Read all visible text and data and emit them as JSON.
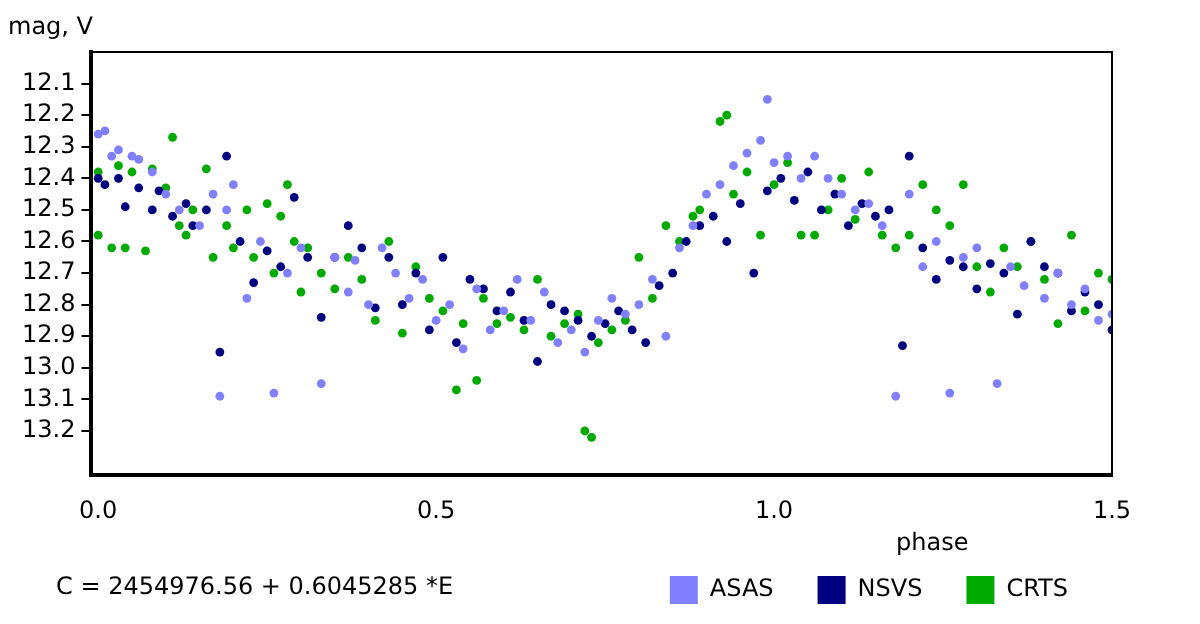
{
  "chart_data": {
    "type": "scatter",
    "ylabel": "mag, V",
    "xlabel": "phase",
    "annotations": [
      "C = 2454976.56 + 0.6045285 *E"
    ],
    "xlim": [
      -0.01,
      1.5
    ],
    "xticks": [
      {
        "value": 0,
        "label": "0.0"
      },
      0.5,
      {
        "value": 1,
        "label": "1.0"
      },
      1.5
    ],
    "ylim": [
      13.34,
      12.0
    ],
    "yticks": [
      12.1,
      12.2,
      12.3,
      12.4,
      12.5,
      12.6,
      12.7,
      12.8,
      12.9,
      {
        "value": 13,
        "label": "13.0"
      },
      13.1,
      13.2
    ],
    "grid": false,
    "legend": "bottom",
    "marker": "circle",
    "series": [
      {
        "name": "ASAS",
        "color": "#8080ff",
        "x": [
          0.0,
          0.01,
          0.02,
          0.03,
          0.05,
          0.06,
          0.08,
          0.1,
          0.12,
          0.15,
          0.17,
          0.18,
          0.19,
          0.2,
          0.22,
          0.24,
          0.26,
          0.28,
          0.3,
          0.33,
          0.35,
          0.37,
          0.38,
          0.4,
          0.42,
          0.44,
          0.46,
          0.48,
          0.5,
          0.52,
          0.54,
          0.56,
          0.58,
          0.6,
          0.62,
          0.64,
          0.66,
          0.68,
          0.7,
          0.72,
          0.74,
          0.76,
          0.78,
          0.8,
          0.82,
          0.84,
          0.86,
          0.88,
          0.9,
          0.92,
          0.94,
          0.96,
          0.98,
          0.99,
          1.0,
          1.02,
          1.04,
          1.06,
          1.08,
          1.1,
          1.12,
          1.14,
          1.16,
          1.18,
          1.2,
          1.22,
          1.24,
          1.26,
          1.28,
          1.3,
          1.33,
          1.35,
          1.37,
          1.4,
          1.42,
          1.44,
          1.46,
          1.48,
          1.5
        ],
        "values": [
          12.26,
          12.25,
          12.33,
          12.31,
          12.33,
          12.34,
          12.38,
          12.45,
          12.5,
          12.55,
          12.45,
          13.09,
          12.5,
          12.42,
          12.78,
          12.6,
          13.08,
          12.7,
          12.62,
          13.05,
          12.65,
          12.76,
          12.66,
          12.8,
          12.62,
          12.7,
          12.78,
          12.72,
          12.85,
          12.8,
          12.94,
          12.75,
          12.88,
          12.82,
          12.72,
          12.85,
          12.76,
          12.92,
          12.88,
          12.95,
          12.85,
          12.78,
          12.83,
          12.8,
          12.72,
          12.9,
          12.62,
          12.55,
          12.45,
          12.42,
          12.36,
          12.32,
          12.28,
          12.15,
          12.35,
          12.33,
          12.4,
          12.33,
          12.4,
          12.45,
          12.5,
          12.48,
          12.55,
          13.09,
          12.45,
          12.68,
          12.6,
          13.08,
          12.65,
          12.62,
          13.05,
          12.68,
          12.74,
          12.78,
          12.7,
          12.8,
          12.75,
          12.85,
          12.83
        ]
      },
      {
        "name": "NSVS",
        "color": "#000080",
        "x": [
          0.0,
          0.01,
          0.03,
          0.04,
          0.06,
          0.08,
          0.09,
          0.11,
          0.13,
          0.14,
          0.16,
          0.18,
          0.19,
          0.21,
          0.23,
          0.25,
          0.27,
          0.29,
          0.31,
          0.33,
          0.35,
          0.37,
          0.39,
          0.41,
          0.43,
          0.45,
          0.47,
          0.49,
          0.51,
          0.53,
          0.55,
          0.57,
          0.59,
          0.61,
          0.63,
          0.65,
          0.67,
          0.69,
          0.71,
          0.73,
          0.75,
          0.77,
          0.79,
          0.81,
          0.83,
          0.85,
          0.87,
          0.89,
          0.91,
          0.93,
          0.95,
          0.97,
          0.99,
          1.01,
          1.03,
          1.05,
          1.07,
          1.09,
          1.11,
          1.13,
          1.15,
          1.17,
          1.19,
          1.2,
          1.22,
          1.24,
          1.26,
          1.28,
          1.3,
          1.32,
          1.34,
          1.36,
          1.38,
          1.4,
          1.42,
          1.44,
          1.46,
          1.48,
          1.5
        ],
        "values": [
          12.4,
          12.42,
          12.4,
          12.49,
          12.43,
          12.5,
          12.44,
          12.52,
          12.48,
          12.55,
          12.5,
          12.95,
          12.33,
          12.6,
          12.73,
          12.63,
          12.68,
          12.46,
          12.65,
          12.84,
          12.65,
          12.55,
          12.62,
          12.81,
          12.65,
          12.8,
          12.7,
          12.88,
          12.65,
          12.92,
          12.72,
          12.75,
          12.82,
          12.76,
          12.85,
          12.98,
          12.8,
          12.82,
          12.85,
          12.9,
          12.86,
          12.82,
          12.88,
          12.92,
          12.74,
          12.7,
          12.6,
          12.55,
          12.52,
          12.6,
          12.48,
          12.7,
          12.44,
          12.4,
          12.47,
          12.38,
          12.5,
          12.45,
          12.55,
          12.48,
          12.52,
          12.5,
          12.93,
          12.33,
          12.62,
          12.72,
          12.66,
          12.68,
          12.75,
          12.67,
          12.7,
          12.83,
          12.6,
          12.68,
          12.7,
          12.82,
          12.76,
          12.8,
          12.88
        ]
      },
      {
        "name": "CRTS",
        "color": "#00aa00",
        "x": [
          0.0,
          0.0,
          0.02,
          0.03,
          0.04,
          0.05,
          0.07,
          0.08,
          0.1,
          0.11,
          0.12,
          0.13,
          0.14,
          0.16,
          0.17,
          0.19,
          0.2,
          0.22,
          0.23,
          0.25,
          0.26,
          0.27,
          0.28,
          0.29,
          0.3,
          0.31,
          0.33,
          0.35,
          0.37,
          0.39,
          0.41,
          0.43,
          0.45,
          0.47,
          0.49,
          0.51,
          0.53,
          0.54,
          0.56,
          0.57,
          0.59,
          0.61,
          0.63,
          0.65,
          0.67,
          0.69,
          0.71,
          0.72,
          0.73,
          0.74,
          0.76,
          0.78,
          0.8,
          0.82,
          0.84,
          0.86,
          0.88,
          0.89,
          0.92,
          0.93,
          0.94,
          0.96,
          0.98,
          1.0,
          1.02,
          1.04,
          1.06,
          1.08,
          1.1,
          1.12,
          1.14,
          1.16,
          1.18,
          1.2,
          1.22,
          1.24,
          1.26,
          1.28,
          1.3,
          1.32,
          1.34,
          1.36,
          1.38,
          1.4,
          1.42,
          1.44,
          1.46,
          1.48,
          1.5
        ],
        "values": [
          12.38,
          12.58,
          12.62,
          12.36,
          12.62,
          12.38,
          12.63,
          12.37,
          12.43,
          12.27,
          12.55,
          12.58,
          12.5,
          12.37,
          12.65,
          12.55,
          12.62,
          12.5,
          12.65,
          12.48,
          12.7,
          12.52,
          12.42,
          12.6,
          12.76,
          12.62,
          12.7,
          12.75,
          12.65,
          12.72,
          12.85,
          12.6,
          12.89,
          12.68,
          12.78,
          12.82,
          13.07,
          12.86,
          13.04,
          12.78,
          12.86,
          12.84,
          12.88,
          12.72,
          12.9,
          12.86,
          12.83,
          13.2,
          13.22,
          12.92,
          12.88,
          12.85,
          12.65,
          12.78,
          12.55,
          12.6,
          12.52,
          12.5,
          12.22,
          12.2,
          12.45,
          12.38,
          12.58,
          12.42,
          12.35,
          12.58,
          12.58,
          12.5,
          12.4,
          12.53,
          12.38,
          12.58,
          12.62,
          12.58,
          12.42,
          12.5,
          12.55,
          12.42,
          12.68,
          12.76,
          12.62,
          12.68,
          12.6,
          12.72,
          12.86,
          12.58,
          12.82,
          12.7,
          12.72
        ]
      }
    ]
  }
}
